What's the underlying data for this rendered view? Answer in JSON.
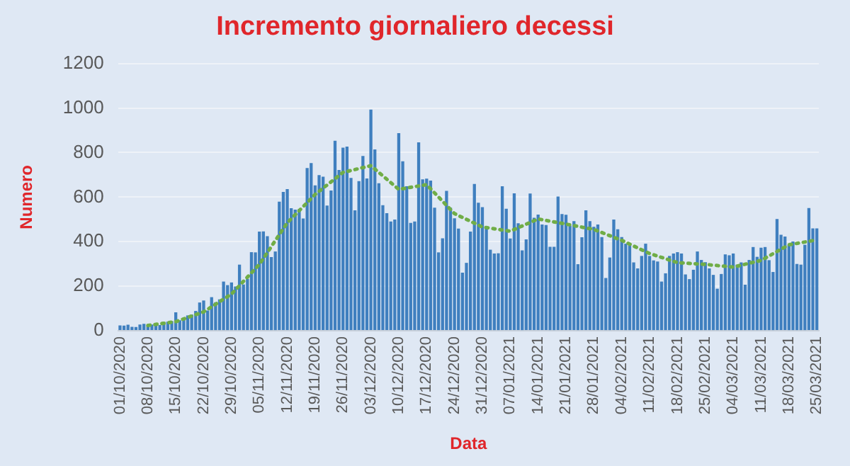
{
  "chart_data": {
    "type": "bar",
    "title": "Incremento giornaliero decessi",
    "xlabel": "Data",
    "ylabel": "Numero",
    "categories": [
      "01/10/2020",
      null,
      null,
      null,
      null,
      null,
      null,
      "08/10/2020",
      null,
      null,
      null,
      null,
      null,
      null,
      "15/10/2020",
      null,
      null,
      null,
      null,
      null,
      null,
      "22/10/2020",
      null,
      null,
      null,
      null,
      null,
      null,
      "29/10/2020",
      null,
      null,
      null,
      null,
      null,
      null,
      "05/11/2020",
      null,
      null,
      null,
      null,
      null,
      null,
      "12/11/2020",
      null,
      null,
      null,
      null,
      null,
      null,
      "19/11/2020",
      null,
      null,
      null,
      null,
      null,
      null,
      "26/11/2020",
      null,
      null,
      null,
      null,
      null,
      null,
      "03/12/2020",
      null,
      null,
      null,
      null,
      null,
      null,
      "10/12/2020",
      null,
      null,
      null,
      null,
      null,
      null,
      "17/12/2020",
      null,
      null,
      null,
      null,
      null,
      null,
      "24/12/2020",
      null,
      null,
      null,
      null,
      null,
      null,
      "31/12/2020",
      null,
      null,
      null,
      null,
      null,
      null,
      "07/01/2021",
      null,
      null,
      null,
      null,
      null,
      null,
      "14/01/2021",
      null,
      null,
      null,
      null,
      null,
      null,
      "21/01/2021",
      null,
      null,
      null,
      null,
      null,
      null,
      "28/01/2021",
      null,
      null,
      null,
      null,
      null,
      null,
      "04/02/2021",
      null,
      null,
      null,
      null,
      null,
      null,
      "11/02/2021",
      null,
      null,
      null,
      null,
      null,
      null,
      "18/02/2021",
      null,
      null,
      null,
      null,
      null,
      null,
      "25/02/2021",
      null,
      null,
      null,
      null,
      null,
      null,
      "04/03/2021",
      null,
      null,
      null,
      null,
      null,
      null,
      "11/03/2021",
      null,
      null,
      null,
      null,
      null,
      null,
      "18/03/2021",
      null,
      null,
      null,
      null,
      null,
      null,
      "25/03/2021"
    ],
    "series": [
      {
        "color": "#3f7fbf",
        "values": [
          24,
          23,
          27,
          18,
          17,
          28,
          31,
          22,
          28,
          29,
          26,
          39,
          41,
          43,
          83,
          47,
          55,
          69,
          73,
          89,
          127,
          136,
          91,
          151,
          128,
          141,
          221,
          205,
          217,
          199,
          297,
          208,
          233,
          353,
          352,
          445,
          446,
          425,
          331,
          356,
          580,
          623,
          636,
          550,
          544,
          546,
          504,
          731,
          753,
          653,
          699,
          692,
          562,
          630,
          853,
          722,
          822,
          827,
          686,
          541,
          672,
          785,
          684,
          993,
          814,
          662,
          564,
          528,
          491,
          499,
          887,
          761,
          649,
          484,
          491,
          846,
          680,
          683,
          674,
          553,
          352,
          415,
          628,
          553,
          505,
          459,
          261,
          305,
          445,
          659,
          575,
          555,
          462,
          364,
          347,
          348,
          649,
          548,
          414,
          617,
          483,
          361,
          410,
          616,
          507,
          522,
          477,
          475,
          377,
          377,
          603,
          524,
          521,
          472,
          492,
          299,
          420,
          541,
          492,
          467,
          477,
          421,
          237,
          329,
          499,
          456,
          421,
          391,
          385,
          307,
          280,
          336,
          391,
          336,
          316,
          311,
          221,
          258,
          336,
          347,
          353,
          347,
          253,
          232,
          274,
          356,
          318,
          308,
          280,
          251,
          189,
          255,
          343,
          339,
          347,
          297,
          307,
          207,
          318,
          376,
          332,
          373,
          376,
          317,
          264,
          502,
          431,
          423,
          386,
          401,
          300,
          297,
          386,
          551,
          460,
          460
        ]
      },
      {
        "type": "line",
        "color": "#70ad47",
        "marker": "none",
        "line_style": "dotted",
        "x": [
          "08/10/2020",
          "15/10/2020",
          "22/10/2020",
          "29/10/2020",
          "05/11/2020",
          "12/11/2020",
          "19/11/2020",
          "26/11/2020",
          "03/12/2020",
          "10/12/2020",
          "17/12/2020",
          "24/12/2020",
          "31/12/2020",
          "07/01/2021",
          "14/01/2021",
          "21/01/2021",
          "28/01/2021",
          "04/02/2021",
          "11/02/2021",
          "18/02/2021",
          "25/02/2021",
          "04/03/2021",
          "11/03/2021",
          "18/03/2021",
          "25/03/2021"
        ],
        "values": [
          24,
          41,
          85,
          165,
          298,
          485,
          612,
          711,
          741,
          635,
          656,
          526,
          466,
          447,
          502,
          479,
          455,
          406,
          347,
          306,
          298,
          286,
          316,
          386,
          408
        ]
      }
    ],
    "ylim": [
      0,
      1200
    ],
    "yticks": [
      0,
      200,
      400,
      600,
      800,
      1000,
      1200
    ],
    "grid": "y",
    "legend": false
  }
}
